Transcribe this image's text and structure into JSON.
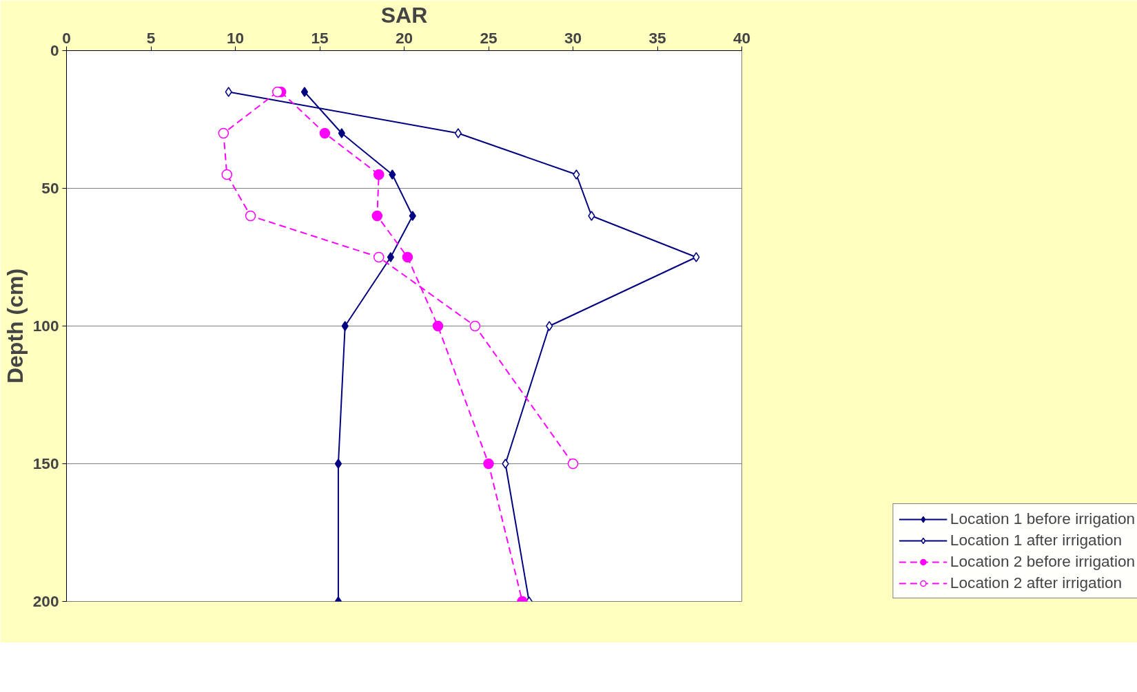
{
  "chart_data": {
    "type": "line",
    "xlabel": "SAR",
    "ylabel": "Depth (cm)",
    "xlim": [
      0,
      40
    ],
    "xticks": [
      0,
      5,
      10,
      15,
      20,
      25,
      30,
      35,
      40
    ],
    "ylim": [
      200,
      0
    ],
    "yticks": [
      0,
      50,
      100,
      150,
      200
    ],
    "grid": "y",
    "legend": "bottom right",
    "series": [
      {
        "name": "Location 1 before irrigation",
        "color": "#000080",
        "marker": "diamond",
        "line_style": "solid",
        "x": [
          14.1,
          16.3,
          19.3,
          20.5,
          19.2,
          16.5,
          16.1,
          16.1
        ],
        "values": [
          15,
          30,
          45,
          60,
          75,
          100,
          150,
          200
        ]
      },
      {
        "name": "Location 1 after irrigation",
        "color": "#000080",
        "marker": "diamond",
        "line_style": "solid",
        "x": [
          9.6,
          23.2,
          30.2,
          31.1,
          37.3,
          28.6,
          26.0,
          27.4
        ],
        "values": [
          15,
          30,
          45,
          60,
          75,
          100,
          150,
          200
        ]
      },
      {
        "name": "Location 2 before irrigation",
        "color": "#ff00ff",
        "marker": "circle",
        "line_style": "dashed",
        "x": [
          12.7,
          15.3,
          18.5,
          18.4,
          20.2,
          22.0,
          25.0,
          27.0
        ],
        "values": [
          15,
          30,
          45,
          60,
          75,
          100,
          150,
          200
        ]
      },
      {
        "name": "Location 2 after irrigation",
        "color": "#ff00ff",
        "marker": "circle",
        "line_style": "dashed",
        "x": [
          12.5,
          9.3,
          9.5,
          10.9,
          18.5,
          24.2,
          30.0
        ],
        "values": [
          15,
          30,
          45,
          60,
          75,
          100,
          150
        ]
      }
    ]
  }
}
